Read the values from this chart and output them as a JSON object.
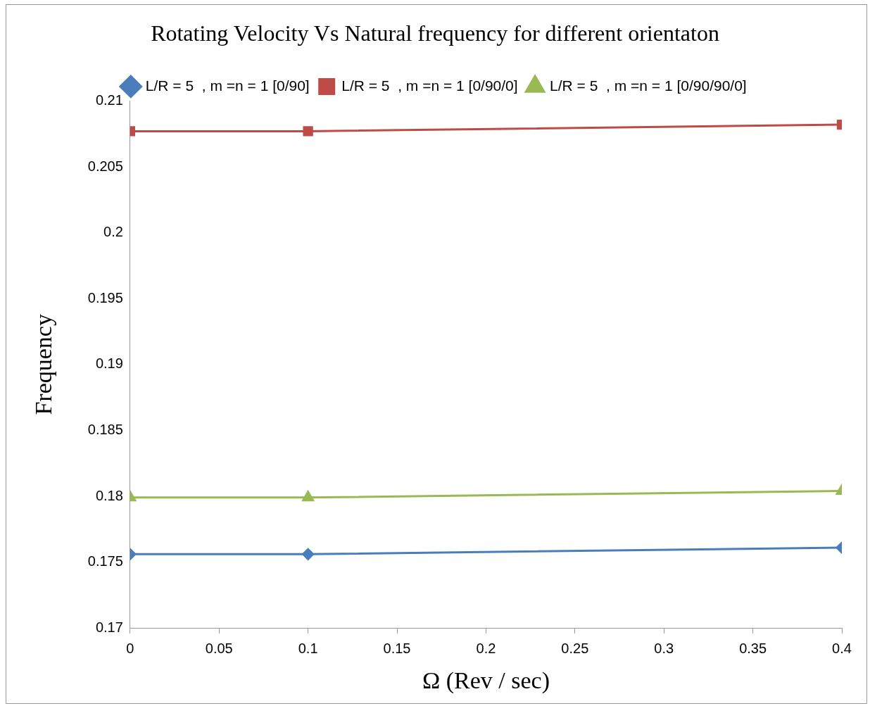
{
  "chart_data": {
    "type": "line",
    "title": "Rotating Velocity Vs Natural frequency for different orientaton",
    "xlabel": "Ω (Rev / sec)",
    "ylabel": "Frequency",
    "x": [
      0,
      0.1,
      0.4
    ],
    "series": [
      {
        "name": "L/R = 5  , m =n = 1 [0/90]",
        "color": "#4a7ebb",
        "marker": "diamond",
        "values": [
          0.1756,
          0.1756,
          0.1761
        ]
      },
      {
        "name": "L/R = 5  , m =n = 1 [0/90/0]",
        "color": "#be4b48",
        "marker": "square",
        "values": [
          0.2077,
          0.2077,
          0.2082
        ]
      },
      {
        "name": "L/R = 5  , m =n = 1 [0/90/90/0]",
        "color": "#98b954",
        "marker": "triangle",
        "values": [
          0.1799,
          0.1799,
          0.1804
        ]
      }
    ],
    "xlim": [
      0,
      0.4
    ],
    "xticks": [
      0,
      0.05,
      0.1,
      0.15,
      0.2,
      0.25,
      0.3,
      0.35,
      0.4
    ],
    "ylim": [
      0.17,
      0.21
    ],
    "yticks": [
      0.17,
      0.175,
      0.18,
      0.185,
      0.19,
      0.195,
      0.2,
      0.205,
      0.21
    ],
    "grid": false,
    "legend": "top",
    "line_style": "solid"
  }
}
